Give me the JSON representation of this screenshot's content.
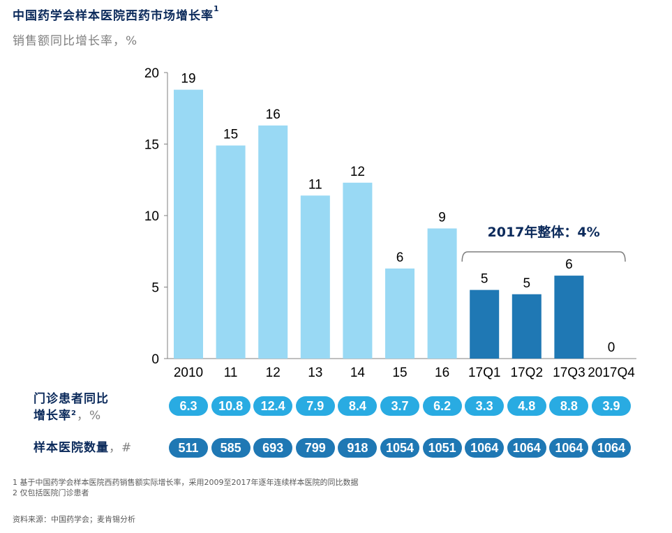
{
  "header": {
    "title": "中国药学会样本医院西药市场增长率",
    "title_sup": "1",
    "subtitle": "销售额同比增长率，%"
  },
  "chart_data": {
    "type": "bar",
    "categories": [
      "2010",
      "11",
      "12",
      "13",
      "14",
      "15",
      "16",
      "17Q1",
      "17Q2",
      "17Q3",
      "2017Q4"
    ],
    "values": [
      18.8,
      14.9,
      16.3,
      11.4,
      12.3,
      6.3,
      9.1,
      4.8,
      4.5,
      5.8,
      0
    ],
    "data_labels": [
      "19",
      "15",
      "16",
      "11",
      "12",
      "6",
      "9",
      "5",
      "5",
      "6",
      "0"
    ],
    "ylim": [
      0,
      20
    ],
    "yticks": [
      0,
      5,
      10,
      15,
      20
    ],
    "xlabel": "",
    "ylabel": "",
    "grid": false,
    "colors": {
      "light": "#99d9f4",
      "dark": "#1f78b4"
    },
    "dark_from_index": 7,
    "annotation": {
      "text": "2017年整体：4%",
      "bracket_categories": [
        "17Q1",
        "2017Q4"
      ]
    }
  },
  "rows": {
    "outpatient": {
      "label_line1": "门诊患者同比",
      "label_line2": "增长率",
      "label_sup": "2",
      "label_unit": "，%",
      "values": [
        "6.3",
        "10.8",
        "12.4",
        "7.9",
        "8.4",
        "3.7",
        "6.2",
        "3.3",
        "4.8",
        "8.8",
        "3.9"
      ],
      "color": "#29abe2"
    },
    "hospitals": {
      "label": "样本医院数量",
      "label_unit": "，#",
      "values": [
        "511",
        "585",
        "693",
        "799",
        "918",
        "1054",
        "1051",
        "1064",
        "1064",
        "1064",
        "1064"
      ],
      "color": "#1f78b4"
    }
  },
  "footnotes": {
    "note1": "1 基于中国药学会样本医院西药销售额实际增长率，采用2009至2017年逐年连续样本医院的同比数据",
    "note2": "2 仅包括医院门诊患者"
  },
  "source": "资料来源：中国药学会；麦肯锡分析"
}
